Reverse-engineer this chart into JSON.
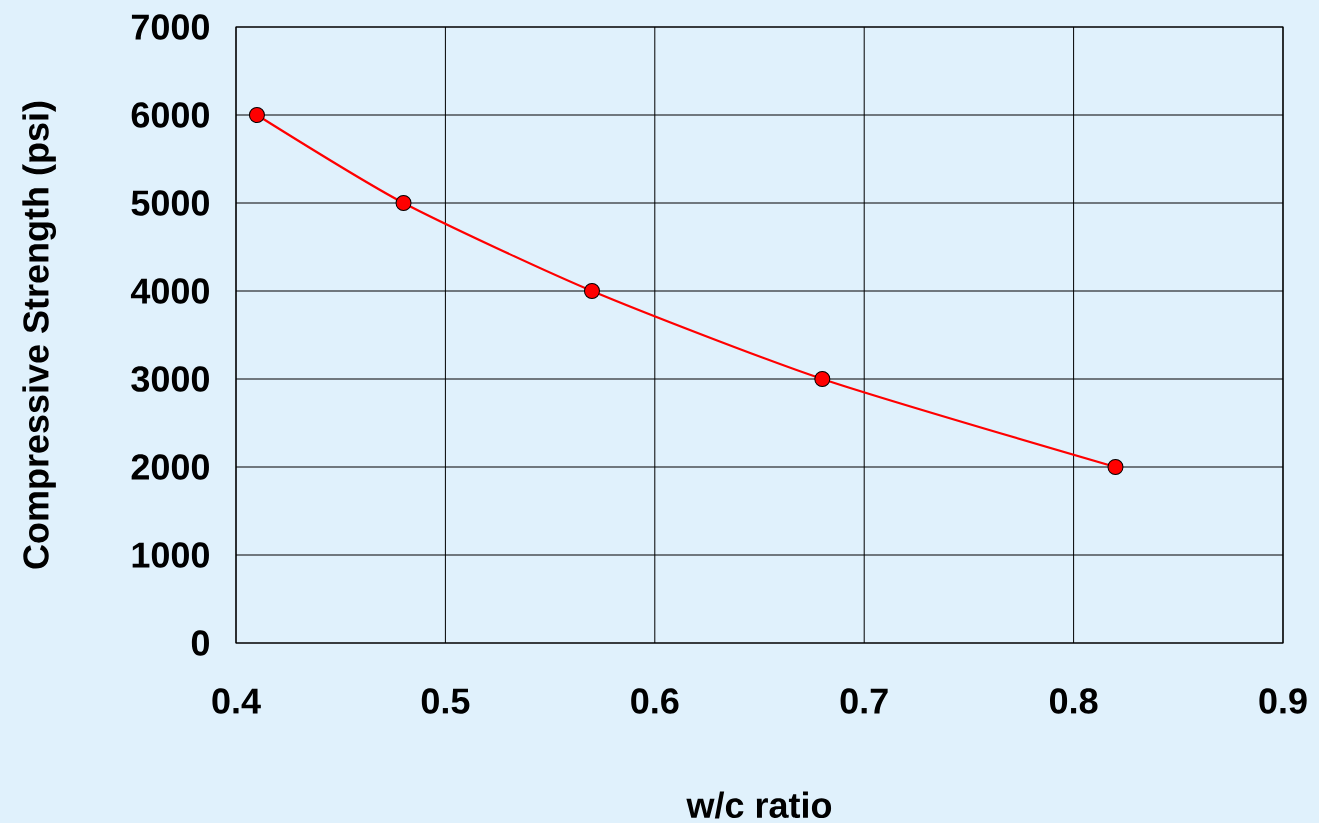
{
  "chart_data": {
    "type": "line",
    "xlabel": "w/c ratio",
    "ylabel": "Compressive Strength (psi)",
    "x": [
      0.41,
      0.48,
      0.57,
      0.68,
      0.82
    ],
    "series": [
      {
        "color": "#ff0000",
        "values": [
          6000,
          5000,
          4000,
          3000,
          2000
        ]
      }
    ],
    "xlim": [
      0.4,
      0.9
    ],
    "ylim": [
      0,
      7000
    ],
    "xticks": [
      0.4,
      0.5,
      0.6,
      0.7,
      0.8,
      0.9
    ],
    "yticks": [
      0,
      1000,
      2000,
      3000,
      4000,
      5000,
      6000,
      7000
    ],
    "grid": true,
    "marker": "circle",
    "line_style": "solid"
  }
}
